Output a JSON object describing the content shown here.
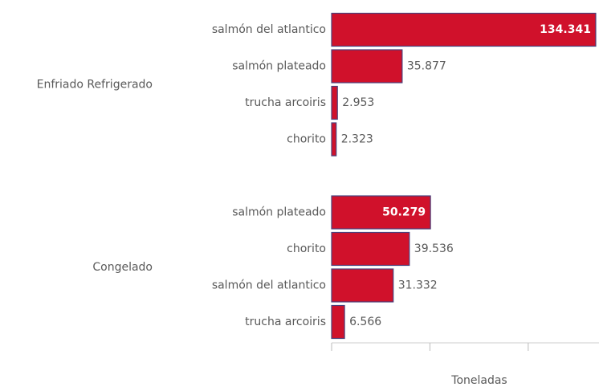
{
  "chart_data": {
    "type": "bar",
    "orientation": "horizontal",
    "color": "#d0112b",
    "groups": [
      {
        "name": "Enfriado Refrigerado",
        "categories": [
          "salmón del atlantico",
          "salmón plateado",
          "trucha arcoiris",
          "chorito"
        ],
        "values": [
          134341,
          35877,
          2953,
          2323
        ],
        "value_labels": [
          "134.341",
          "35.877",
          "2.953",
          "2.323"
        ]
      },
      {
        "name": "Congelado",
        "categories": [
          "salmón plateado",
          "chorito",
          "salmón del atlantico",
          "trucha arcoiris"
        ],
        "values": [
          50279,
          39536,
          31332,
          6566
        ],
        "value_labels": [
          "50.279",
          "39.536",
          "31.332",
          "6.566"
        ]
      }
    ],
    "xlabel": "Toneladas",
    "xlim": [
      0,
      136000
    ],
    "xticks": [
      0,
      50000,
      100000
    ]
  }
}
